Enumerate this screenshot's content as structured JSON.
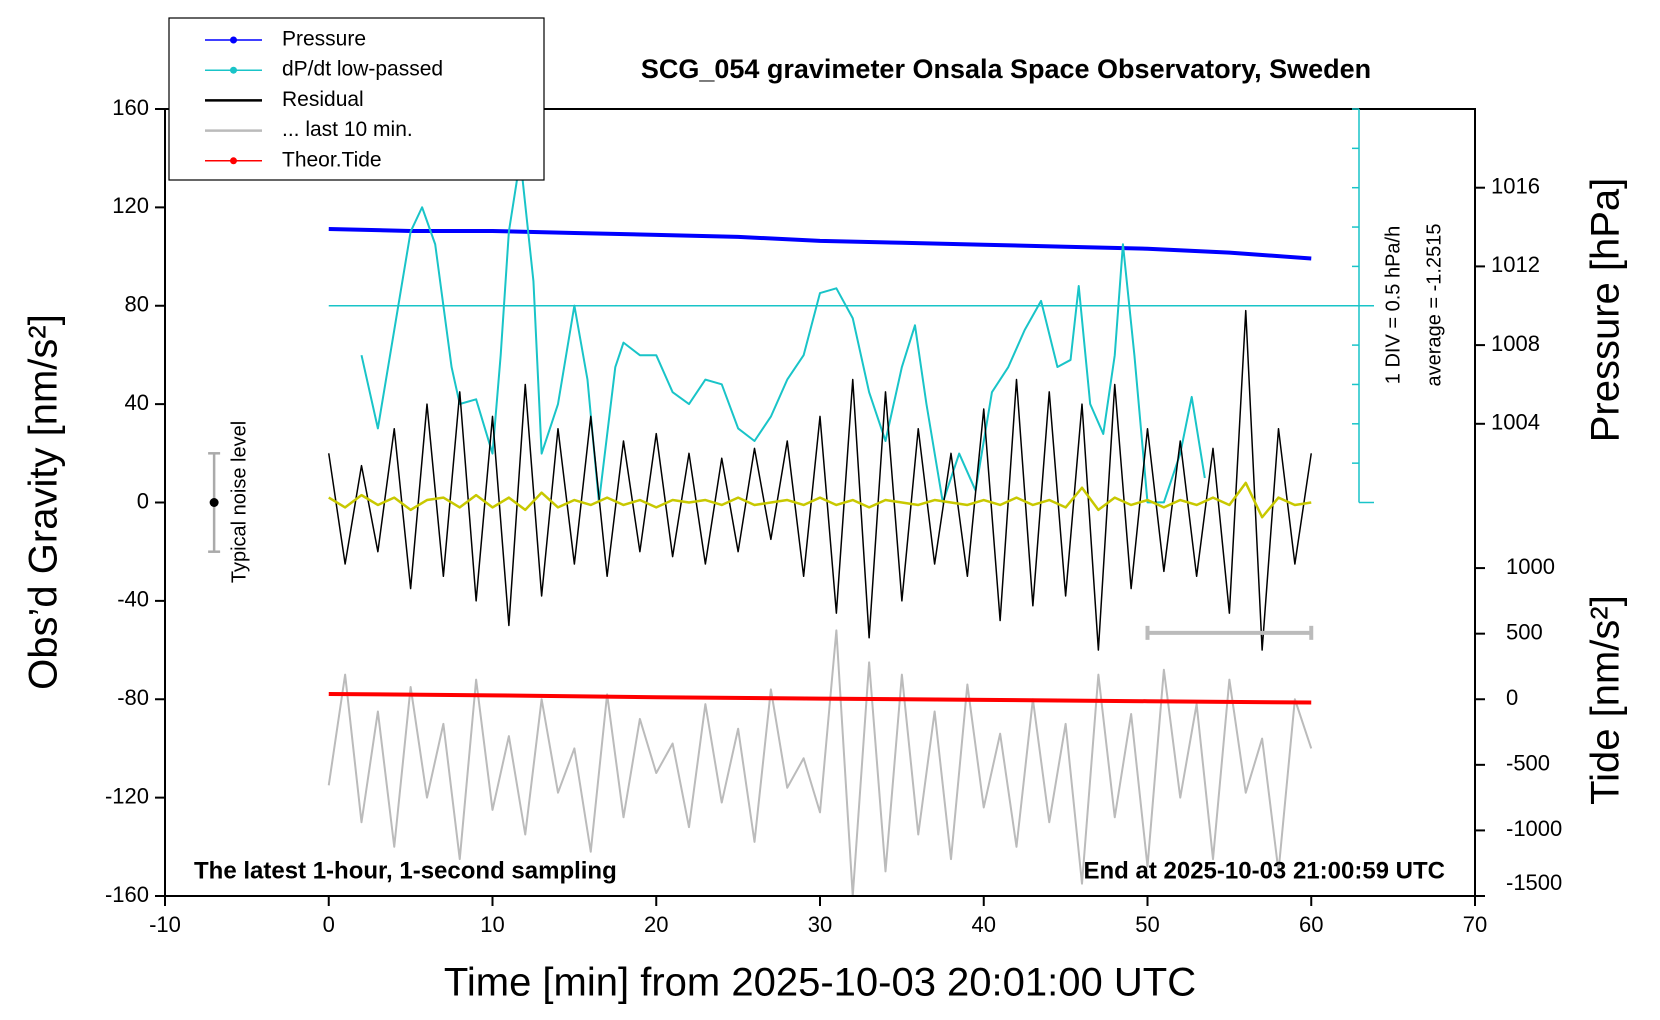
{
  "chart_data": {
    "type": "line",
    "title": "SCG_054 gravimeter Onsala Space Observatory, Sweden",
    "x_label": "Time [min] from 2025-10-03 20:01:00 UTC",
    "y_label": "Obs’d Gravity [nm/s²]",
    "y2_label": "Pressure [hPa]",
    "y3_label": "Tide [nm/s²]",
    "annotations": {
      "sampling": "The latest 1-hour, 1-second sampling",
      "end": "End at 2025-10-03 21:00:59 UTC",
      "noise": "Typical noise level",
      "div": "1 DIV = 0.5 hPa/h",
      "average_label": "average = -1.2515"
    },
    "xlim": [
      -10,
      70
    ],
    "xticks": [
      -10,
      0,
      10,
      20,
      30,
      40,
      50,
      60,
      70
    ],
    "ylim": [
      -160,
      160
    ],
    "yticks": [
      -160,
      -120,
      -80,
      -40,
      0,
      40,
      80,
      120,
      160
    ],
    "y2lim": [
      1000,
      1020
    ],
    "y2ticks": [
      1004,
      1008,
      1012,
      1016
    ],
    "y3lim": [
      -1500,
      1500
    ],
    "y3ticks": [
      -1500,
      -1000,
      -500,
      0,
      500,
      1000
    ],
    "y4lim": [
      -3.7515,
      1.2485
    ],
    "y4ticks": [
      -3.7515,
      -3.2515,
      -2.7515,
      -2.2515,
      -1.7515,
      -1.2515,
      -0.7515,
      -0.2515,
      0.2485,
      0.7485,
      1.2485
    ],
    "average": -1.2515,
    "noise_level": {
      "x": -7,
      "value": 0,
      "error": 20
    },
    "last10_bar": {
      "x": [
        50,
        60
      ],
      "y": -53,
      "color": "#bbbbbb"
    },
    "legend": "upper left",
    "series": [
      {
        "name": "Pressure",
        "color": "#0000ff",
        "axis": "y2",
        "marker": true,
        "width": 4,
        "x": [
          0,
          5,
          10,
          15,
          20,
          25,
          30,
          35,
          40,
          45,
          50,
          55,
          60
        ],
        "values": [
          1013.9,
          1013.8,
          1013.8,
          1013.7,
          1013.6,
          1013.5,
          1013.3,
          1013.2,
          1013.1,
          1013.0,
          1012.9,
          1012.7,
          1012.4
        ]
      },
      {
        "name": "dP/dt low-passed",
        "color": "#19c4c8",
        "axis": "y4",
        "marker": true,
        "width": 2,
        "x": [
          2,
          3,
          4,
          5,
          5.7,
          6.5,
          7.5,
          8,
          9,
          10,
          10.5,
          11,
          11.7,
          12.5,
          13,
          14,
          15,
          15.8,
          16.5,
          17.5,
          18,
          19,
          20,
          21,
          22,
          23,
          24,
          25,
          26,
          27,
          28,
          29,
          30,
          31,
          32,
          33,
          34,
          35,
          35.8,
          36.5,
          37.5,
          38.5,
          39.5,
          40.5,
          41.5,
          42.5,
          43.5,
          44.5,
          45.3,
          45.8,
          46.5,
          47.3,
          48,
          48.5,
          49.2,
          50,
          51,
          52,
          52.7,
          53.5
        ],
        "values": [
          -1.88,
          -2.81,
          -1.56,
          -0.31,
          0.0,
          -0.47,
          -2.03,
          -2.5,
          -2.44,
          -3.13,
          -1.88,
          -0.31,
          0.62,
          -0.94,
          -3.13,
          -2.5,
          -1.25,
          -2.19,
          -3.75,
          -2.03,
          -1.72,
          -1.88,
          -1.88,
          -2.35,
          -2.5,
          -2.19,
          -2.25,
          -2.81,
          -2.97,
          -2.66,
          -2.19,
          -1.88,
          -1.09,
          -1.03,
          -1.41,
          -2.35,
          -2.97,
          -2.03,
          -1.5,
          -2.5,
          -3.75,
          -3.13,
          -3.6,
          -2.35,
          -2.03,
          -1.56,
          -1.19,
          -2.03,
          -1.94,
          -1.0,
          -2.5,
          -2.88,
          -1.88,
          -0.47,
          -1.88,
          -3.75,
          -3.75,
          -3.13,
          -2.41,
          -3.44
        ]
      },
      {
        "name": "Residual",
        "color": "#000000",
        "axis": "y",
        "width": 1.5,
        "x": [
          0,
          1,
          2,
          3,
          4,
          5,
          6,
          7,
          8,
          9,
          10,
          11,
          12,
          13,
          14,
          15,
          16,
          17,
          18,
          19,
          20,
          21,
          22,
          23,
          24,
          25,
          26,
          27,
          28,
          29,
          30,
          31,
          32,
          33,
          34,
          35,
          36,
          37,
          38,
          39,
          40,
          41,
          42,
          43,
          44,
          45,
          46,
          47,
          48,
          49,
          50,
          51,
          52,
          53,
          54,
          55,
          56,
          57,
          58,
          59,
          60
        ],
        "values": [
          20,
          -25,
          15,
          -20,
          30,
          -35,
          40,
          -30,
          45,
          -40,
          35,
          -50,
          48,
          -38,
          30,
          -25,
          35,
          -30,
          25,
          -20,
          28,
          -22,
          20,
          -25,
          18,
          -20,
          22,
          -15,
          25,
          -30,
          35,
          -45,
          50,
          -55,
          45,
          -40,
          30,
          -25,
          20,
          -30,
          38,
          -48,
          50,
          -42,
          45,
          -38,
          40,
          -60,
          48,
          -35,
          30,
          -28,
          25,
          -30,
          22,
          -45,
          78,
          -60,
          30,
          -25,
          20
        ]
      },
      {
        "name": "... last 10 min.",
        "color": "#bbbbbb",
        "axis": "y",
        "width": 2,
        "x": [
          0,
          1,
          2,
          3,
          4,
          5,
          6,
          7,
          8,
          9,
          10,
          11,
          12,
          13,
          14,
          15,
          16,
          17,
          18,
          19,
          20,
          21,
          22,
          23,
          24,
          25,
          26,
          27,
          28,
          29,
          30,
          31,
          32,
          33,
          34,
          35,
          36,
          37,
          38,
          39,
          40,
          41,
          42,
          43,
          44,
          45,
          46,
          47,
          48,
          49,
          50,
          51,
          52,
          53,
          54,
          55,
          56,
          57,
          58,
          59,
          60
        ],
        "values": [
          -115,
          -70,
          -130,
          -85,
          -140,
          -75,
          -120,
          -90,
          -145,
          -72,
          -125,
          -95,
          -135,
          -80,
          -118,
          -100,
          -142,
          -78,
          -128,
          -88,
          -110,
          -98,
          -132,
          -82,
          -122,
          -92,
          -138,
          -76,
          -116,
          -104,
          -126,
          -52,
          -160,
          -65,
          -150,
          -70,
          -135,
          -85,
          -145,
          -74,
          -124,
          -94,
          -140,
          -80,
          -130,
          -90,
          -155,
          -70,
          -128,
          -86,
          -148,
          -68,
          -120,
          -82,
          -145,
          -72,
          -118,
          -96,
          -150,
          -80,
          -100
        ]
      },
      {
        "name": "Theor.Tide",
        "color": "#ff0000",
        "axis": "y3",
        "marker": true,
        "width": 4,
        "x": [
          0,
          10,
          20,
          30,
          40,
          50,
          60
        ],
        "values": [
          40,
          30,
          15,
          5,
          -5,
          -15,
          -25
        ]
      },
      {
        "color": "#c8c800",
        "axis": "y",
        "width": 2.5,
        "x": [
          0,
          1,
          2,
          3,
          4,
          5,
          6,
          7,
          8,
          9,
          10,
          11,
          12,
          13,
          14,
          15,
          16,
          17,
          18,
          19,
          20,
          21,
          22,
          23,
          24,
          25,
          26,
          27,
          28,
          29,
          30,
          31,
          32,
          33,
          34,
          35,
          36,
          37,
          38,
          39,
          40,
          41,
          42,
          43,
          44,
          45,
          46,
          47,
          48,
          49,
          50,
          51,
          52,
          53,
          54,
          55,
          56,
          57,
          58,
          59,
          60
        ],
        "values": [
          2,
          -2,
          3,
          -1,
          2,
          -3,
          1,
          2,
          -2,
          3,
          -2,
          2,
          -3,
          4,
          -2,
          1,
          -1,
          2,
          -1,
          1,
          -2,
          1,
          0,
          1,
          -1,
          2,
          -1,
          0,
          1,
          -1,
          2,
          -1,
          1,
          -2,
          1,
          0,
          -1,
          1,
          0,
          -1,
          1,
          -1,
          2,
          -1,
          1,
          -2,
          6,
          -3,
          2,
          -1,
          1,
          -2,
          1,
          -1,
          2,
          -1,
          8,
          -6,
          2,
          -1,
          0
        ]
      }
    ],
    "draw_order": [
      0,
      1,
      2,
      5,
      3,
      4
    ]
  }
}
